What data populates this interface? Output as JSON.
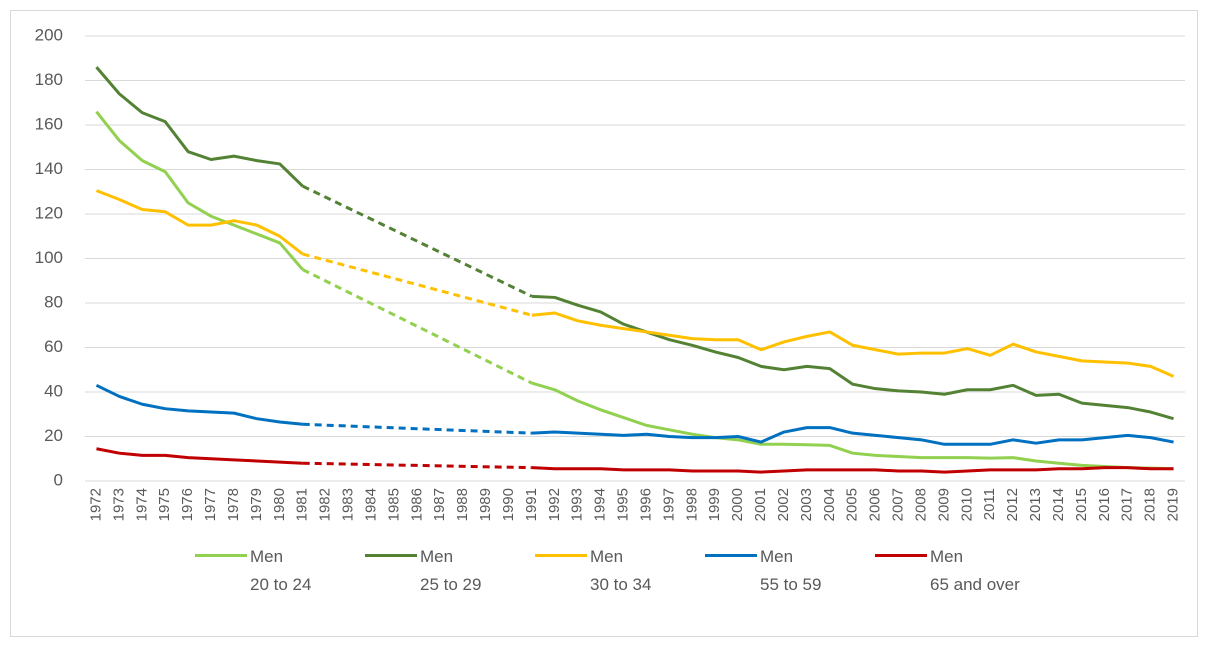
{
  "chart_data": {
    "type": "line",
    "categories": [
      "1972",
      "1973",
      "1974",
      "1975",
      "1976",
      "1977",
      "1978",
      "1979",
      "1980",
      "1981",
      "1982",
      "1983",
      "1984",
      "1985",
      "1986",
      "1987",
      "1988",
      "1989",
      "1990",
      "1991",
      "1992",
      "1993",
      "1994",
      "1995",
      "1996",
      "1997",
      "1998",
      "1999",
      "2000",
      "2001",
      "2002",
      "2003",
      "2004",
      "2005",
      "2006",
      "2007",
      "2008",
      "2009",
      "2010",
      "2011",
      "2012",
      "2013",
      "2014",
      "2015",
      "2016",
      "2017",
      "2018",
      "2019"
    ],
    "series": [
      {
        "name": "Men\n20 to 24",
        "color": "#92d050",
        "values": [
          166,
          153,
          144,
          139,
          125,
          119,
          115,
          111,
          107,
          95,
          null,
          null,
          null,
          null,
          null,
          null,
          null,
          null,
          null,
          44,
          41,
          36,
          32,
          28.5,
          25,
          23,
          21,
          19.5,
          18.5,
          16.5,
          16.5,
          16.3,
          16,
          12.5,
          11.5,
          11,
          10.5,
          10.5,
          10.5,
          10.3,
          10.5,
          9,
          8,
          7,
          6.5,
          6,
          5.8,
          5.5
        ]
      },
      {
        "name": "Men\n25 to 29",
        "color": "#548235",
        "values": [
          186,
          174,
          165.5,
          161.5,
          148,
          144.5,
          146,
          144,
          142.5,
          132.5,
          null,
          null,
          null,
          null,
          null,
          null,
          null,
          null,
          null,
          83,
          82.5,
          79,
          76,
          70.5,
          67,
          63.5,
          61,
          58,
          55.5,
          51.5,
          50,
          51.5,
          50.5,
          43.5,
          41.5,
          40.5,
          40,
          39,
          41,
          41,
          43,
          38.5,
          39,
          35,
          34,
          33,
          31,
          28
        ]
      },
      {
        "name": "Men\n30 to 34",
        "color": "#ffc000",
        "values": [
          130.5,
          126.5,
          122,
          121,
          115,
          115,
          117,
          115,
          110,
          102,
          null,
          null,
          null,
          null,
          null,
          null,
          null,
          null,
          null,
          74.5,
          75.5,
          72,
          70,
          68.5,
          67,
          65.5,
          64,
          63.5,
          63.5,
          59,
          62.5,
          65,
          67,
          61,
          59,
          57,
          57.5,
          57.5,
          59.5,
          56.5,
          61.5,
          58,
          56,
          54,
          53.5,
          53,
          51.5,
          47
        ]
      },
      {
        "name": "Men\n55 to 59",
        "color": "#0070c0",
        "values": [
          43,
          38,
          34.5,
          32.5,
          31.5,
          31,
          30.5,
          28,
          26.5,
          25.5,
          null,
          null,
          null,
          null,
          null,
          null,
          null,
          null,
          null,
          21.5,
          22,
          21.5,
          21,
          20.5,
          21,
          20,
          19.5,
          19.5,
          20,
          17.5,
          22,
          24,
          24,
          21.5,
          20.5,
          19.5,
          18.5,
          16.5,
          16.5,
          16.5,
          18.5,
          17,
          18.5,
          18.5,
          19.5,
          20.5,
          19.5,
          17.5
        ]
      },
      {
        "name": "Men\n65 and over",
        "color": "#c00000",
        "values": [
          14.5,
          12.5,
          11.5,
          11.5,
          10.5,
          10,
          9.5,
          9,
          8.5,
          8,
          null,
          null,
          null,
          null,
          null,
          null,
          null,
          null,
          null,
          6,
          5.5,
          5.5,
          5.5,
          5,
          5,
          5,
          4.5,
          4.5,
          4.5,
          4,
          4.5,
          5,
          5,
          5,
          5,
          4.5,
          4.5,
          4,
          4.5,
          5,
          5,
          5,
          5.5,
          5.5,
          6,
          6,
          5.5,
          5.5
        ]
      }
    ],
    "ylim": [
      0,
      200
    ],
    "yticks": [
      0,
      20,
      40,
      60,
      80,
      100,
      120,
      140,
      160,
      180,
      200
    ],
    "grid": true,
    "legend": "bottom"
  }
}
